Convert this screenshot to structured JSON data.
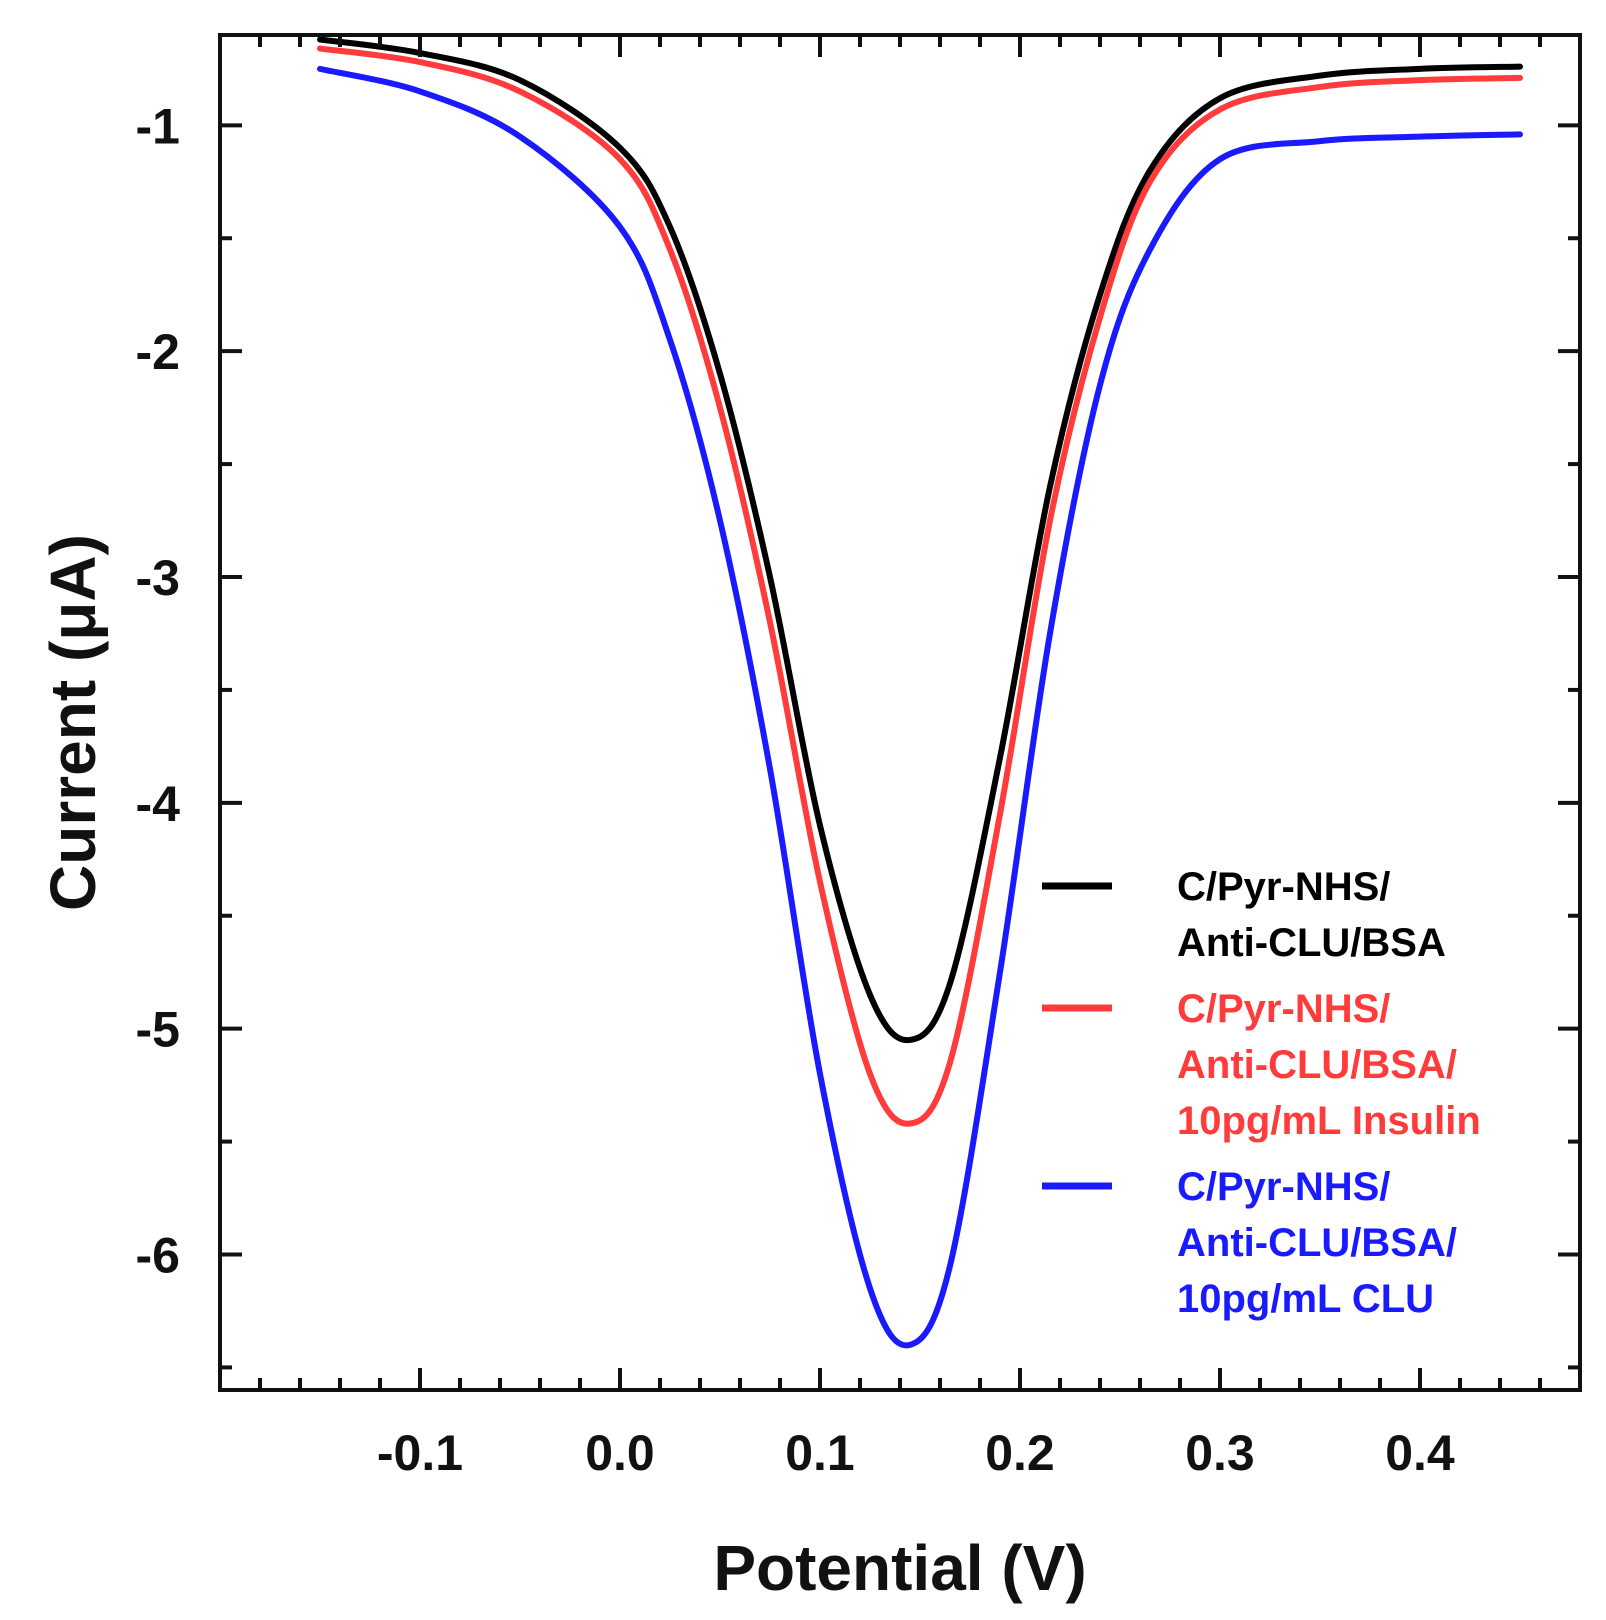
{
  "chart_data": {
    "type": "line",
    "xlabel": "Potential (V)",
    "ylabel": "Current (μA)",
    "xlim": [
      -0.2,
      0.48
    ],
    "ylim": [
      -6.6,
      -0.6
    ],
    "xticks": [
      -0.1,
      0.0,
      0.1,
      0.2,
      0.3,
      0.4
    ],
    "xtick_labels": [
      "-0.1",
      "0.0",
      "0.1",
      "0.2",
      "0.3",
      "0.4"
    ],
    "yticks": [
      -1,
      -2,
      -3,
      -4,
      -5,
      -6
    ],
    "ytick_labels": [
      "-1",
      "-2",
      "-3",
      "-4",
      "-5",
      "-6"
    ],
    "grid": false,
    "legend_position": "lower-right",
    "series": [
      {
        "name": "C/Pyr-NHS/ Anti-CLU/BSA",
        "legend_lines": [
          "C/Pyr-NHS/",
          "Anti-CLU/BSA"
        ],
        "color": "#000000",
        "x": [
          -0.15,
          -0.1,
          -0.05,
          0.0,
          0.025,
          0.05,
          0.075,
          0.1,
          0.125,
          0.145,
          0.165,
          0.19,
          0.215,
          0.24,
          0.265,
          0.3,
          0.35,
          0.4,
          0.45
        ],
        "y": [
          -0.62,
          -0.68,
          -0.8,
          -1.1,
          -1.45,
          -2.1,
          -3.0,
          -4.1,
          -4.85,
          -5.05,
          -4.8,
          -3.8,
          -2.6,
          -1.75,
          -1.2,
          -0.88,
          -0.78,
          -0.75,
          -0.74
        ]
      },
      {
        "name": "C/Pyr-NHS/ Anti-CLU/BSA/ 10pg/mL Insulin",
        "legend_lines": [
          "C/Pyr-NHS/",
          "Anti-CLU/BSA/",
          "10pg/mL Insulin"
        ],
        "color": "#ff3b3b",
        "x": [
          -0.15,
          -0.1,
          -0.05,
          0.0,
          0.025,
          0.05,
          0.075,
          0.1,
          0.125,
          0.145,
          0.165,
          0.19,
          0.215,
          0.24,
          0.265,
          0.3,
          0.35,
          0.4,
          0.45
        ],
        "y": [
          -0.66,
          -0.72,
          -0.85,
          -1.15,
          -1.55,
          -2.25,
          -3.2,
          -4.35,
          -5.2,
          -5.42,
          -5.15,
          -4.05,
          -2.75,
          -1.85,
          -1.25,
          -0.93,
          -0.83,
          -0.8,
          -0.79
        ]
      },
      {
        "name": "C/Pyr-NHS/ Anti-CLU/BSA/ 10pg/mL CLU",
        "legend_lines": [
          "C/Pyr-NHS/",
          "Anti-CLU/BSA/",
          "10pg/mL CLU"
        ],
        "color": "#1a1aff",
        "x": [
          -0.15,
          -0.1,
          -0.05,
          0.0,
          0.025,
          0.05,
          0.075,
          0.1,
          0.125,
          0.145,
          0.165,
          0.19,
          0.215,
          0.24,
          0.265,
          0.3,
          0.35,
          0.4,
          0.45
        ],
        "y": [
          -0.75,
          -0.85,
          -1.05,
          -1.45,
          -1.95,
          -2.75,
          -3.85,
          -5.2,
          -6.15,
          -6.4,
          -6.05,
          -4.75,
          -3.25,
          -2.15,
          -1.55,
          -1.15,
          -1.07,
          -1.05,
          -1.04
        ]
      }
    ]
  }
}
